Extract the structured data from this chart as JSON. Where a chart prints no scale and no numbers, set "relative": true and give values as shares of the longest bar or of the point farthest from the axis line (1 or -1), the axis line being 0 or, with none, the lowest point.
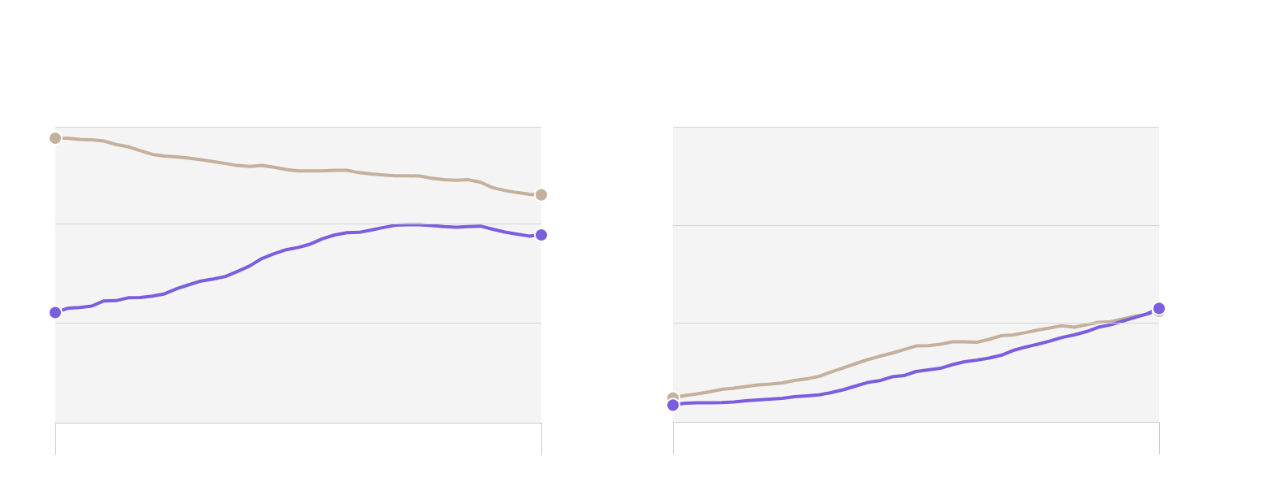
{
  "chart_data": [
    {
      "type": "line",
      "relative": true,
      "ref_lines": [
        {
          "axis": "y",
          "value": 0.35,
          "color": "#d4d4d4"
        },
        {
          "axis": "y",
          "value": 0.7,
          "color": "#d4d4d4"
        },
        {
          "axis": "y",
          "value": 1.04,
          "color": "#d4d4d4"
        }
      ],
      "categories": [
        null,
        null,
        null,
        null,
        null,
        null,
        null,
        null,
        null,
        null,
        null,
        null,
        null,
        null,
        null,
        null,
        null,
        null,
        null,
        null,
        null,
        null,
        null,
        null,
        null,
        null,
        null,
        null,
        null,
        null,
        null,
        null,
        null,
        null,
        null,
        null,
        null,
        null,
        null,
        null,
        null
      ],
      "series": [
        {
          "color": "#c4b09b",
          "values": [
            1.0,
            1.0,
            0.996,
            0.994,
            0.99,
            0.978,
            0.97,
            0.956,
            0.943,
            0.937,
            0.934,
            0.93,
            0.924,
            0.918,
            0.911,
            0.904,
            0.901,
            0.904,
            0.898,
            0.89,
            0.885,
            0.885,
            0.885,
            0.887,
            0.887,
            0.879,
            0.874,
            0.871,
            0.868,
            0.868,
            0.867,
            0.859,
            0.854,
            0.852,
            0.854,
            0.845,
            0.826,
            0.816,
            0.809,
            0.803,
            0.801
          ]
        },
        {
          "color": "#7b5ee0",
          "values": [
            0.387,
            0.402,
            0.405,
            0.41,
            0.428,
            0.429,
            0.439,
            0.44,
            0.445,
            0.453,
            0.471,
            0.485,
            0.498,
            0.505,
            0.514,
            0.532,
            0.551,
            0.577,
            0.594,
            0.608,
            0.616,
            0.628,
            0.647,
            0.66,
            0.668,
            0.669,
            0.677,
            0.686,
            0.694,
            0.696,
            0.696,
            0.693,
            0.689,
            0.687,
            0.689,
            0.691,
            0.68,
            0.67,
            0.663,
            0.656,
            0.66
          ]
        }
      ]
    },
    {
      "type": "line",
      "relative": true,
      "ref_lines": [
        {
          "axis": "y",
          "value": 0.87,
          "color": "#d4d4d4"
        },
        {
          "axis": "y",
          "value": 1.73,
          "color": "#d4d4d4"
        },
        {
          "axis": "y",
          "value": 2.6,
          "color": "#d4d4d4"
        }
      ],
      "categories": [
        null,
        null,
        null,
        null,
        null,
        null,
        null,
        null,
        null,
        null,
        null,
        null,
        null,
        null,
        null,
        null,
        null,
        null,
        null,
        null,
        null,
        null,
        null,
        null,
        null,
        null,
        null,
        null,
        null,
        null,
        null,
        null,
        null,
        null,
        null,
        null,
        null,
        null,
        null,
        null,
        null
      ],
      "series": [
        {
          "color": "#c4b09b",
          "values": [
            0.211,
            0.233,
            0.247,
            0.265,
            0.286,
            0.297,
            0.311,
            0.326,
            0.333,
            0.344,
            0.365,
            0.379,
            0.401,
            0.44,
            0.476,
            0.512,
            0.548,
            0.578,
            0.605,
            0.637,
            0.669,
            0.671,
            0.684,
            0.705,
            0.705,
            0.702,
            0.727,
            0.759,
            0.766,
            0.787,
            0.809,
            0.827,
            0.847,
            0.834,
            0.855,
            0.877,
            0.883,
            0.906,
            0.931,
            0.948,
            0.974
          ]
        },
        {
          "color": "#7b5ee0",
          "values": [
            0.148,
            0.165,
            0.168,
            0.168,
            0.17,
            0.175,
            0.186,
            0.193,
            0.2,
            0.208,
            0.222,
            0.229,
            0.238,
            0.258,
            0.283,
            0.315,
            0.347,
            0.363,
            0.397,
            0.408,
            0.444,
            0.458,
            0.472,
            0.505,
            0.53,
            0.544,
            0.562,
            0.587,
            0.63,
            0.659,
            0.684,
            0.712,
            0.744,
            0.766,
            0.795,
            0.834,
            0.855,
            0.888,
            0.92,
            0.952,
            1.0
          ]
        }
      ]
    }
  ]
}
